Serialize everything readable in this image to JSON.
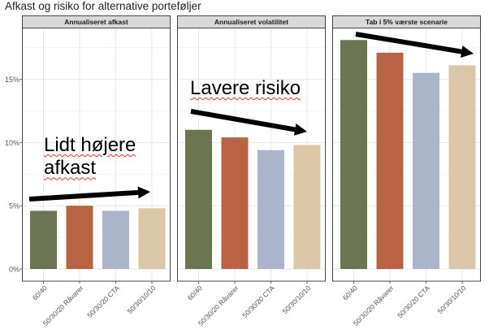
{
  "title": "Afkast og risiko for alternative porteføljer",
  "chart_data": {
    "type": "bar",
    "categories": [
      "60/40",
      "50/30/20 Råvarer",
      "50/30/20 CTA",
      "50/30/10/10"
    ],
    "colors": [
      "#6b7553",
      "#b86444",
      "#aab5cc",
      "#dcc6a8"
    ],
    "y_ticks": [
      0,
      5,
      10,
      15
    ],
    "y_tick_labels": [
      "0%",
      "5%",
      "10%",
      "15%"
    ],
    "ylim": [
      0,
      19
    ],
    "grid": true,
    "panels": [
      {
        "title": "Annualiseret afkast",
        "values": [
          4.6,
          5.0,
          4.6,
          4.8
        ]
      },
      {
        "title": "Annualiseret volatilitet",
        "values": [
          11.0,
          10.4,
          9.4,
          9.8
        ]
      },
      {
        "title": "Tab i 5% værste scenarie",
        "values": [
          18.1,
          17.1,
          15.5,
          16.1
        ]
      }
    ]
  },
  "annotations": {
    "left_line1": "Lidt højere",
    "left_line2": "afkast",
    "middle": "Lavere risiko"
  }
}
